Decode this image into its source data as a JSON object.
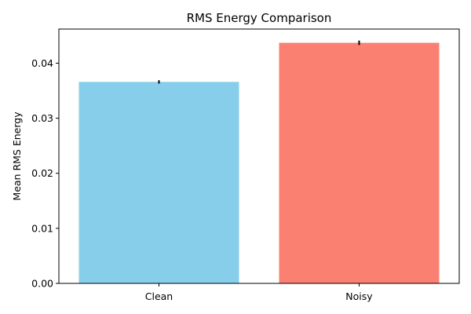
{
  "chart_data": {
    "type": "bar",
    "title": "RMS Energy Comparison",
    "xlabel": "",
    "ylabel": "Mean RMS Energy",
    "categories": [
      "Clean",
      "Noisy"
    ],
    "values": [
      0.0366,
      0.0437
    ],
    "errors": [
      0.0003,
      0.0004
    ],
    "colors": [
      "#87CEEB",
      "#FA8072"
    ],
    "ylim": [
      0,
      0.0462
    ],
    "yticks": [
      0.0,
      0.01,
      0.02,
      0.03,
      0.04
    ],
    "ytick_labels": [
      "0.00",
      "0.01",
      "0.02",
      "0.03",
      "0.04"
    ],
    "grid": false
  }
}
